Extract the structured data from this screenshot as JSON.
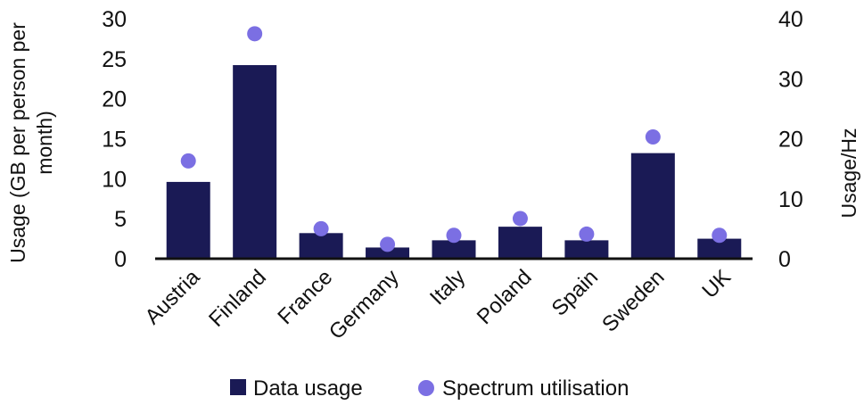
{
  "chart_data": {
    "type": "bar",
    "categories": [
      "Austria",
      "Finland",
      "France",
      "Germany",
      "Italy",
      "Poland",
      "Spain",
      "Sweden",
      "UK"
    ],
    "series": [
      {
        "name": "Data usage",
        "type": "bar",
        "axis": "left",
        "color": "#1a1a55",
        "values": [
          9.6,
          24.2,
          3.2,
          1.4,
          2.3,
          4.0,
          2.3,
          13.2,
          2.5
        ]
      },
      {
        "name": "Spectrum utilisation",
        "type": "scatter",
        "axis": "right",
        "color": "#7b6fe3",
        "values": [
          16.3,
          37.5,
          5.0,
          2.4,
          3.9,
          6.7,
          4.1,
          20.3,
          3.9
        ]
      }
    ],
    "ylabel": "Usage (GB per person per month)",
    "ylabel_lines": [
      "Usage (GB per person per",
      "month)"
    ],
    "y2label": "Usage/Hz",
    "ylim": [
      0,
      30
    ],
    "y2lim": [
      0,
      40
    ],
    "yticks": [
      "0",
      "5",
      "10",
      "15",
      "20",
      "25",
      "30"
    ],
    "y2ticks": [
      "0",
      "10",
      "20",
      "30",
      "40"
    ],
    "grid": false,
    "legend_position": "bottom"
  }
}
